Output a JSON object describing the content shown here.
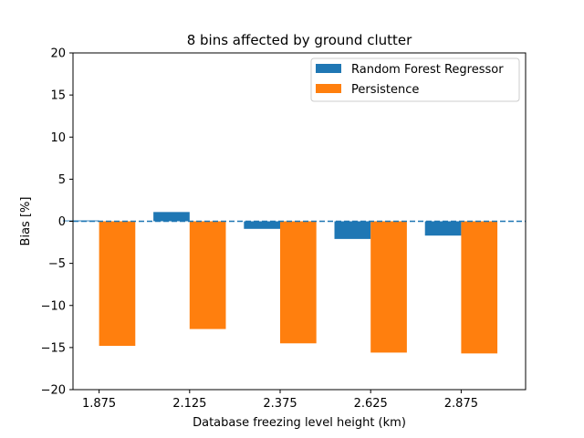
{
  "chart_data": {
    "type": "bar",
    "title": "8 bins affected by ground clutter",
    "xlabel": "Database freezing level height (km)",
    "ylabel": "Bias [%]",
    "categories": [
      "1.875",
      "2.125",
      "2.375",
      "2.625",
      "2.875"
    ],
    "ylim": [
      -20,
      20
    ],
    "yticks": [
      -20,
      -15,
      -10,
      -5,
      0,
      5,
      10,
      15,
      20
    ],
    "series": [
      {
        "name": "Random Forest Regressor",
        "color": "#1f77b4",
        "values": [
          0.1,
          1.1,
          -0.9,
          -2.1,
          -1.7
        ]
      },
      {
        "name": "Persistence",
        "color": "#ff7f0e",
        "values": [
          -14.8,
          -12.8,
          -14.5,
          -15.6,
          -15.7
        ]
      }
    ],
    "reference_line": {
      "y": 0,
      "style": "dashed",
      "color": "#1f77b4"
    },
    "grid": false,
    "legend_position": "top-right"
  }
}
